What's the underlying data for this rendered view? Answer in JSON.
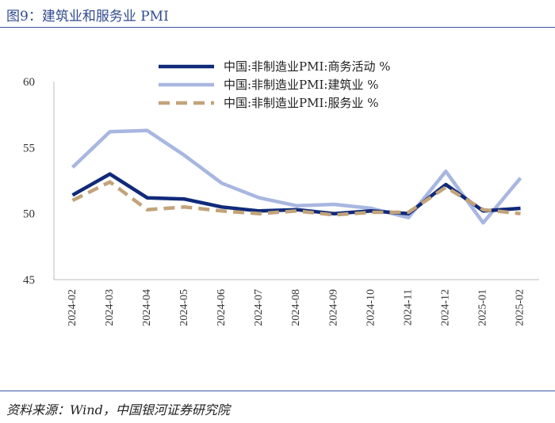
{
  "header": {
    "title": "图9：建筑业和服务业 PMI"
  },
  "footer": {
    "source": "资料来源：Wind，中国银河证券研究院"
  },
  "colors": {
    "rule": "#3b56a0",
    "title": "#2f4a8f"
  },
  "chart_data": {
    "type": "line",
    "title": "",
    "xlabel": "",
    "ylabel": "",
    "ylim": [
      45,
      60
    ],
    "yticks": [
      "45",
      "50",
      "55",
      "60"
    ],
    "grid": false,
    "legend_position": "top",
    "categories": [
      "2024-02",
      "2024-03",
      "2024-04",
      "2024-05",
      "2024-06",
      "2024-07",
      "2024-08",
      "2024-09",
      "2024-10",
      "2024-11",
      "2024-12",
      "2025-01",
      "2025-02"
    ],
    "series": [
      {
        "name": "中国:非制造业PMI:商务活动 %",
        "color": "#102a7a",
        "style": "solid-thick",
        "values": [
          51.4,
          53.0,
          51.2,
          51.1,
          50.5,
          50.2,
          50.3,
          50.0,
          50.2,
          50.0,
          52.2,
          50.2,
          50.4
        ]
      },
      {
        "name": "中国:非制造业PMI:建筑业 %",
        "color": "#a8b7e0",
        "style": "solid",
        "values": [
          53.5,
          56.2,
          56.3,
          54.4,
          52.3,
          51.2,
          50.6,
          50.7,
          50.4,
          49.7,
          53.2,
          49.3,
          52.7
        ]
      },
      {
        "name": "中国:非制造业PMI:服务业 %",
        "color": "#c2a37a",
        "style": "dashed",
        "values": [
          51.0,
          52.4,
          50.3,
          50.5,
          50.2,
          50.0,
          50.2,
          49.9,
          50.1,
          50.1,
          52.0,
          50.3,
          50.0
        ]
      }
    ]
  }
}
